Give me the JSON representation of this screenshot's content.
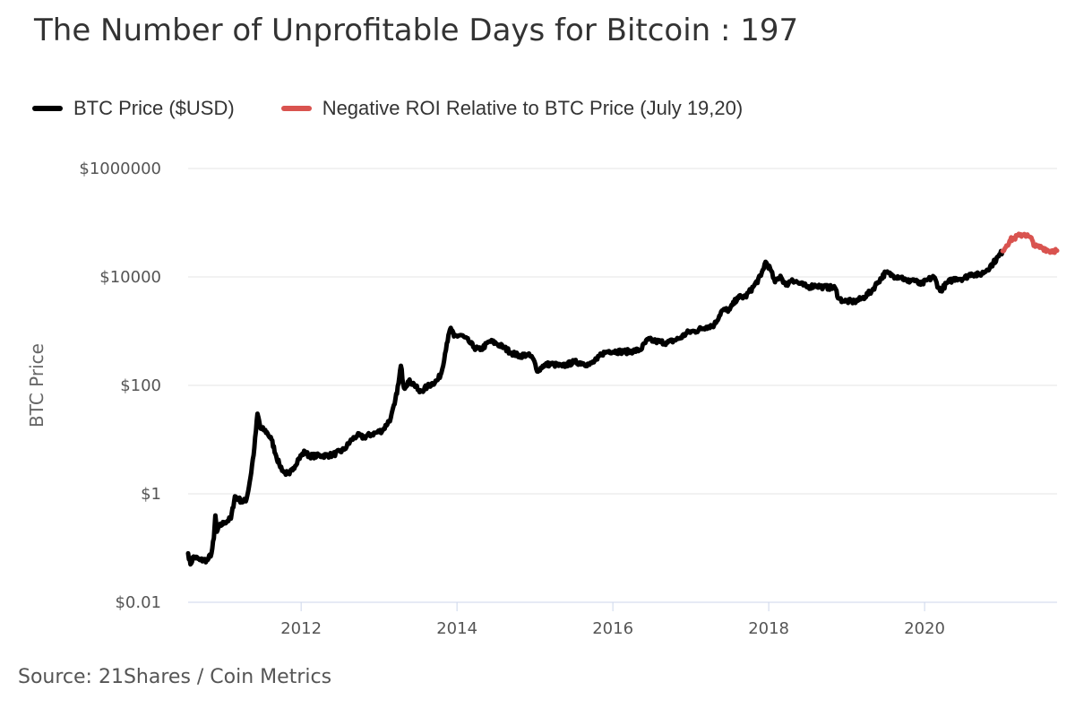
{
  "chart_data": {
    "type": "line",
    "title": "The Number of Unprofitable Days for Bitcoin : 197",
    "ylabel": "BTC Price",
    "xlabel": "",
    "y_scale": "log",
    "ylim": [
      0.01,
      1000000
    ],
    "y_ticks": [
      {
        "value": 0.01,
        "label": "$0.01"
      },
      {
        "value": 1,
        "label": "$1"
      },
      {
        "value": 100,
        "label": "$100"
      },
      {
        "value": 10000,
        "label": "$10000"
      },
      {
        "value": 1000000,
        "label": "$1000000"
      }
    ],
    "xlim": [
      2010.55,
      2021.7
    ],
    "x_ticks": [
      {
        "value": 2012,
        "label": "2012"
      },
      {
        "value": 2014,
        "label": "2014"
      },
      {
        "value": 2016,
        "label": "2016"
      },
      {
        "value": 2018,
        "label": "2018"
      },
      {
        "value": 2020,
        "label": "2020"
      }
    ],
    "grid": true,
    "legend_position": "top-left",
    "series": [
      {
        "name": "BTC Price ($USD)",
        "color": "#000000",
        "points": [
          [
            2010.55,
            0.08
          ],
          [
            2010.58,
            0.05
          ],
          [
            2010.62,
            0.07
          ],
          [
            2010.7,
            0.06
          ],
          [
            2010.8,
            0.06
          ],
          [
            2010.85,
            0.08
          ],
          [
            2010.88,
            0.15
          ],
          [
            2010.9,
            0.4
          ],
          [
            2010.92,
            0.2
          ],
          [
            2010.95,
            0.25
          ],
          [
            2011.02,
            0.3
          ],
          [
            2011.1,
            0.35
          ],
          [
            2011.15,
            0.9
          ],
          [
            2011.2,
            0.8
          ],
          [
            2011.25,
            0.7
          ],
          [
            2011.3,
            0.8
          ],
          [
            2011.35,
            2.0
          ],
          [
            2011.4,
            7.0
          ],
          [
            2011.44,
            30.0
          ],
          [
            2011.48,
            16.0
          ],
          [
            2011.53,
            15.0
          ],
          [
            2011.57,
            13.0
          ],
          [
            2011.62,
            10.0
          ],
          [
            2011.68,
            5.0
          ],
          [
            2011.72,
            3.5
          ],
          [
            2011.78,
            2.5
          ],
          [
            2011.85,
            2.3
          ],
          [
            2011.9,
            3.0
          ],
          [
            2011.97,
            4.5
          ],
          [
            2012.05,
            6.0
          ],
          [
            2012.1,
            5.0
          ],
          [
            2012.2,
            5.0
          ],
          [
            2012.4,
            5.2
          ],
          [
            2012.55,
            6.5
          ],
          [
            2012.65,
            10.0
          ],
          [
            2012.72,
            12.0
          ],
          [
            2012.8,
            11.0
          ],
          [
            2012.9,
            12.5
          ],
          [
            2012.97,
            13.5
          ],
          [
            2013.05,
            15.0
          ],
          [
            2013.15,
            25.0
          ],
          [
            2013.2,
            45.0
          ],
          [
            2013.25,
            110.0
          ],
          [
            2013.28,
            230.0
          ],
          [
            2013.32,
            90.0
          ],
          [
            2013.38,
            120.0
          ],
          [
            2013.45,
            105.0
          ],
          [
            2013.52,
            75.0
          ],
          [
            2013.62,
            95.0
          ],
          [
            2013.75,
            125.0
          ],
          [
            2013.8,
            170.0
          ],
          [
            2013.87,
            600.0
          ],
          [
            2013.92,
            1150.0
          ],
          [
            2013.96,
            800.0
          ],
          [
            2014.05,
            850.0
          ],
          [
            2014.15,
            650.0
          ],
          [
            2014.22,
            500.0
          ],
          [
            2014.3,
            450.0
          ],
          [
            2014.42,
            650.0
          ],
          [
            2014.5,
            600.0
          ],
          [
            2014.6,
            500.0
          ],
          [
            2014.7,
            400.0
          ],
          [
            2014.8,
            350.0
          ],
          [
            2014.9,
            370.0
          ],
          [
            2014.97,
            320.0
          ],
          [
            2015.04,
            180.0
          ],
          [
            2015.1,
            230.0
          ],
          [
            2015.2,
            250.0
          ],
          [
            2015.35,
            225.0
          ],
          [
            2015.5,
            270.0
          ],
          [
            2015.6,
            260.0
          ],
          [
            2015.7,
            240.0
          ],
          [
            2015.8,
            300.0
          ],
          [
            2015.85,
            380.0
          ],
          [
            2015.95,
            430.0
          ],
          [
            2016.1,
            420.0
          ],
          [
            2016.2,
            420.0
          ],
          [
            2016.35,
            450.0
          ],
          [
            2016.45,
            700.0
          ],
          [
            2016.55,
            650.0
          ],
          [
            2016.7,
            610.0
          ],
          [
            2016.85,
            730.0
          ],
          [
            2016.97,
            960.0
          ],
          [
            2017.05,
            1000.0
          ],
          [
            2017.2,
            1200.0
          ],
          [
            2017.3,
            1300.0
          ],
          [
            2017.4,
            2400.0
          ],
          [
            2017.5,
            2500.0
          ],
          [
            2017.6,
            4200.0
          ],
          [
            2017.7,
            4300.0
          ],
          [
            2017.8,
            6500.0
          ],
          [
            2017.9,
            10500.0
          ],
          [
            2017.96,
            19000.0
          ],
          [
            2018.02,
            14000.0
          ],
          [
            2018.08,
            8000.0
          ],
          [
            2018.15,
            10500.0
          ],
          [
            2018.22,
            7000.0
          ],
          [
            2018.3,
            9000.0
          ],
          [
            2018.4,
            7500.0
          ],
          [
            2018.5,
            6500.0
          ],
          [
            2018.6,
            7000.0
          ],
          [
            2018.7,
            6500.0
          ],
          [
            2018.85,
            6300.0
          ],
          [
            2018.9,
            4000.0
          ],
          [
            2018.96,
            3600.0
          ],
          [
            2019.1,
            3500.0
          ],
          [
            2019.2,
            4000.0
          ],
          [
            2019.32,
            5500.0
          ],
          [
            2019.4,
            8000.0
          ],
          [
            2019.5,
            12000.0
          ],
          [
            2019.6,
            10500.0
          ],
          [
            2019.7,
            10000.0
          ],
          [
            2019.78,
            8200.0
          ],
          [
            2019.85,
            9000.0
          ],
          [
            2019.95,
            7200.0
          ],
          [
            2020.05,
            9000.0
          ],
          [
            2020.12,
            10000.0
          ],
          [
            2020.2,
            5500.0
          ],
          [
            2020.3,
            8000.0
          ],
          [
            2020.4,
            9500.0
          ],
          [
            2020.5,
            9300.0
          ],
          [
            2020.6,
            11500.0
          ],
          [
            2020.7,
            10800.0
          ],
          [
            2020.8,
            13500.0
          ],
          [
            2020.88,
            18000.0
          ],
          [
            2020.95,
            24000.0
          ],
          [
            2021.0,
            30000.0
          ]
        ]
      },
      {
        "name": "Negative ROI Relative to BTC Price (July 19,20)",
        "color": "#d9534f",
        "points": [
          [
            2021.0,
            30000.0
          ],
          [
            2021.05,
            38000.0
          ],
          [
            2021.1,
            48000.0
          ],
          [
            2021.15,
            52000.0
          ],
          [
            2021.22,
            58000.0
          ],
          [
            2021.28,
            62000.0
          ],
          [
            2021.33,
            56000.0
          ],
          [
            2021.38,
            48000.0
          ],
          [
            2021.42,
            36000.0
          ],
          [
            2021.5,
            35000.0
          ],
          [
            2021.55,
            33000.0
          ],
          [
            2021.6,
            30000.0
          ],
          [
            2021.66,
            31000.0
          ],
          [
            2021.7,
            30500.0
          ]
        ]
      }
    ]
  },
  "source": "Source: 21Shares / Coin Metrics"
}
